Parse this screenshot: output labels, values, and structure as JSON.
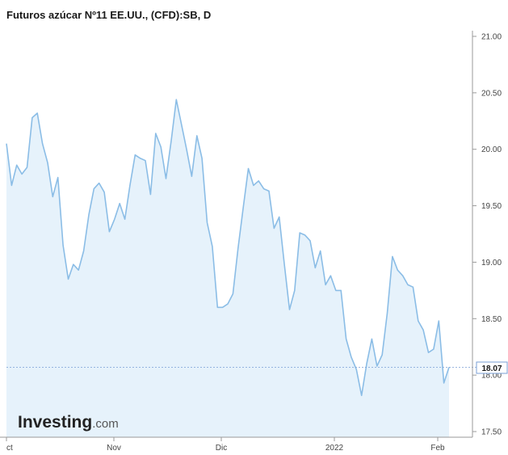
{
  "chart_data": {
    "type": "area",
    "title": "Futuros azúcar Nº11 EE.UU., (CFD):SB, D",
    "ylim": [
      17.45,
      21.05
    ],
    "y_ticks": [
      "21.00",
      "20.50",
      "20.00",
      "19.50",
      "19.00",
      "18.50",
      "18.00",
      "17.50"
    ],
    "x_ticks": [
      "ct",
      "Nov",
      "Dic",
      "2022",
      "Feb"
    ],
    "last_price": "18.07",
    "grid": false,
    "colors": {
      "line": "#8bbde6",
      "fill": "#e6f2fb",
      "last_price_line": "#7a9fd6",
      "axis": "#9a9a9a"
    },
    "series": [
      {
        "values": [
          20.05,
          19.68,
          19.86,
          19.78,
          19.84,
          20.28,
          20.32,
          20.05,
          19.88,
          19.58,
          19.75,
          19.15,
          18.85,
          18.98,
          18.93,
          19.1,
          19.42,
          19.65,
          19.7,
          19.62,
          19.27,
          19.38,
          19.52,
          19.38,
          19.68,
          19.95,
          19.92,
          19.9,
          19.6,
          20.14,
          20.02,
          19.74,
          20.07,
          20.44,
          20.22,
          20.0,
          19.76,
          20.12,
          19.92,
          19.35,
          19.14,
          18.6,
          18.6,
          18.63,
          18.72,
          19.12,
          19.48,
          19.83,
          19.68,
          19.72,
          19.65,
          19.63,
          19.3,
          19.4,
          18.98,
          18.58,
          18.75,
          19.26,
          19.24,
          19.19,
          18.95,
          19.1,
          18.8,
          18.88,
          18.75,
          18.75,
          18.32,
          18.16,
          18.05,
          17.82,
          18.1,
          18.32,
          18.08,
          18.18,
          18.55,
          19.05,
          18.93,
          18.88,
          18.8,
          18.78,
          18.48,
          18.4,
          18.2,
          18.23,
          18.48,
          17.93,
          18.07
        ]
      }
    ]
  },
  "watermark": {
    "brand": "Investing",
    "suffix": ".com"
  }
}
